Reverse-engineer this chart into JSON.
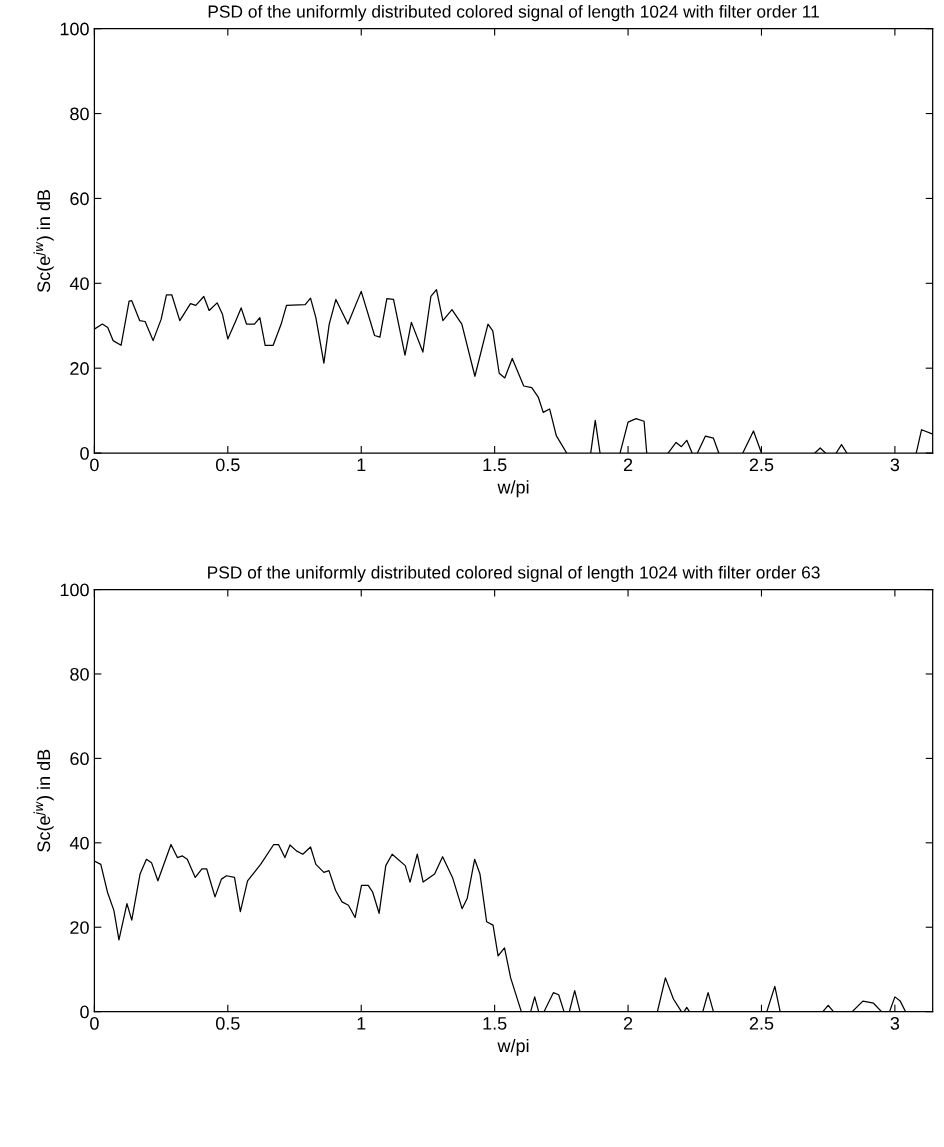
{
  "chart_data": [
    {
      "type": "line",
      "title": "PSD of the uniformly distributed colored signal of length 1024 with filter order 11",
      "xlabel": "w/pi",
      "ylabel": "Sc(e$^{jw}$) in dB",
      "xlim": [
        0,
        3.1416
      ],
      "ylim": [
        0,
        100
      ],
      "xticks": [
        0,
        0.5,
        1,
        1.5,
        2,
        2.5,
        3
      ],
      "yticks": [
        0,
        20,
        40,
        60,
        80,
        100
      ],
      "grid": false,
      "legend": false,
      "marker": "none",
      "line_style": "solid",
      "series": [
        {
          "color": "#000000",
          "x": [
            0,
            0.03,
            0.05,
            0.07,
            0.1,
            0.13,
            0.14,
            0.17,
            0.19,
            0.22,
            0.25,
            0.27,
            0.29,
            0.32,
            0.36,
            0.38,
            0.41,
            0.43,
            0.46,
            0.48,
            0.5,
            0.53,
            0.55,
            0.57,
            0.6,
            0.62,
            0.64,
            0.67,
            0.7,
            0.72,
            0.79,
            0.81,
            0.83,
            0.86,
            0.88,
            0.905,
            0.95,
            1.0,
            1.05,
            1.07,
            1.096,
            1.121,
            1.164,
            1.188,
            1.231,
            1.261,
            1.282,
            1.306,
            1.34,
            1.377,
            1.426,
            1.475,
            1.493,
            1.517,
            1.538,
            1.566,
            1.609,
            1.639,
            1.664,
            1.682,
            1.706,
            1.731,
            1.77,
            1.8,
            1.86,
            1.877,
            1.895,
            1.93,
            1.97,
            2.0,
            2.03,
            2.06,
            2.07,
            2.1,
            2.15,
            2.18,
            2.2,
            2.22,
            2.24,
            2.25,
            2.26,
            2.29,
            2.32,
            2.34,
            2.4,
            2.43,
            2.47,
            2.5,
            2.6,
            2.7,
            2.72,
            2.74,
            2.76,
            2.78,
            2.8,
            2.82,
            2.9,
            3.08,
            3.1,
            3.14
          ],
          "values": [
            29.2,
            30.4,
            29.6,
            26.5,
            25.4,
            35.8,
            35.9,
            31.2,
            31,
            26.5,
            31.5,
            37.3,
            37.3,
            31.2,
            35.2,
            34.8,
            36.9,
            33.6,
            35.4,
            32.7,
            26.9,
            31.2,
            34.2,
            30.4,
            30.4,
            31.9,
            25.4,
            25.4,
            30.4,
            34.8,
            35,
            36.5,
            31.9,
            21.2,
            30.4,
            36.2,
            30.4,
            38.1,
            27.7,
            27.3,
            36.4,
            36.2,
            23.1,
            30.8,
            23.8,
            36.9,
            38.5,
            31.2,
            33.8,
            30.4,
            18.1,
            30.4,
            28.8,
            18.8,
            17.7,
            22.3,
            15.8,
            15.4,
            13.1,
            9.6,
            10.4,
            4.1,
            0,
            null,
            0,
            7.7,
            0,
            null,
            0,
            7.3,
            8.1,
            7.5,
            0,
            null,
            0,
            2.5,
            1.5,
            3,
            0,
            null,
            0,
            4,
            3.5,
            0,
            null,
            0,
            5.2,
            0,
            null,
            0,
            1.2,
            0,
            null,
            0,
            2,
            0,
            null,
            0,
            5.5,
            4.5
          ]
        }
      ]
    },
    {
      "type": "line",
      "title": "PSD of the uniformly distributed colored signal of length 1024 with filter order 63",
      "xlabel": "w/pi",
      "ylabel": "Sc(e$^{jw}$) in dB",
      "xlim": [
        0,
        3.1416
      ],
      "ylim": [
        0,
        100
      ],
      "xticks": [
        0,
        0.5,
        1,
        1.5,
        2,
        2.5,
        3
      ],
      "yticks": [
        0,
        20,
        40,
        60,
        80,
        100
      ],
      "grid": false,
      "legend": false,
      "marker": "none",
      "line_style": "solid",
      "series": [
        {
          "color": "#000000",
          "x": [
            0,
            0.024,
            0.049,
            0.073,
            0.092,
            0.122,
            0.14,
            0.171,
            0.195,
            0.214,
            0.238,
            0.287,
            0.311,
            0.33,
            0.348,
            0.378,
            0.403,
            0.421,
            0.452,
            0.476,
            0.495,
            0.525,
            0.547,
            0.574,
            0.623,
            0.672,
            0.69,
            0.714,
            0.733,
            0.757,
            0.781,
            0.81,
            0.83,
            0.86,
            0.879,
            0.904,
            0.928,
            0.952,
            0.977,
            1.001,
            1.026,
            1.043,
            1.067,
            1.092,
            1.116,
            1.165,
            1.183,
            1.21,
            1.232,
            1.275,
            1.305,
            1.342,
            1.378,
            1.397,
            1.425,
            1.445,
            1.47,
            1.494,
            1.513,
            1.537,
            1.56,
            1.6,
            1.62,
            1.635,
            1.65,
            1.665,
            1.675,
            1.685,
            1.72,
            1.74,
            1.76,
            1.77,
            1.78,
            1.8,
            1.82,
            1.9,
            2.11,
            2.14,
            2.17,
            2.2,
            2.205,
            2.21,
            2.22,
            2.23,
            2.25,
            2.28,
            2.3,
            2.32,
            2.4,
            2.52,
            2.55,
            2.57,
            2.6,
            2.73,
            2.75,
            2.77,
            2.8,
            2.84,
            2.88,
            2.92,
            2.95,
            2.965,
            2.98,
            3.0,
            3.02,
            3.04
          ],
          "values": [
            35.7,
            34.9,
            28.3,
            24,
            17,
            25.6,
            21.7,
            32.6,
            36.1,
            35.3,
            31,
            39.6,
            36.5,
            36.9,
            36.1,
            31.8,
            33.8,
            33.8,
            27.2,
            31.4,
            32.2,
            31.8,
            23.7,
            31,
            34.9,
            39.6,
            39.6,
            36.5,
            39.5,
            38.1,
            37.3,
            39,
            34.9,
            33,
            33.4,
            28.7,
            26,
            25.2,
            22.3,
            29.9,
            29.9,
            28.3,
            23.3,
            34.6,
            37.3,
            34.6,
            30.7,
            37.3,
            30.7,
            32.6,
            36.7,
            31.8,
            24.4,
            26.8,
            36.1,
            32.6,
            21.3,
            20.5,
            13.2,
            15.1,
            8,
            0,
            null,
            0,
            3.5,
            0,
            null,
            0,
            4.5,
            4,
            0,
            null,
            0,
            5,
            0,
            null,
            0,
            8,
            3,
            0,
            null,
            0,
            1,
            0,
            null,
            0,
            4.5,
            0,
            null,
            0,
            6,
            0,
            null,
            0,
            1.5,
            0,
            null,
            0,
            2.5,
            2,
            0,
            null,
            0,
            3.5,
            2.5,
            0
          ]
        }
      ]
    }
  ]
}
